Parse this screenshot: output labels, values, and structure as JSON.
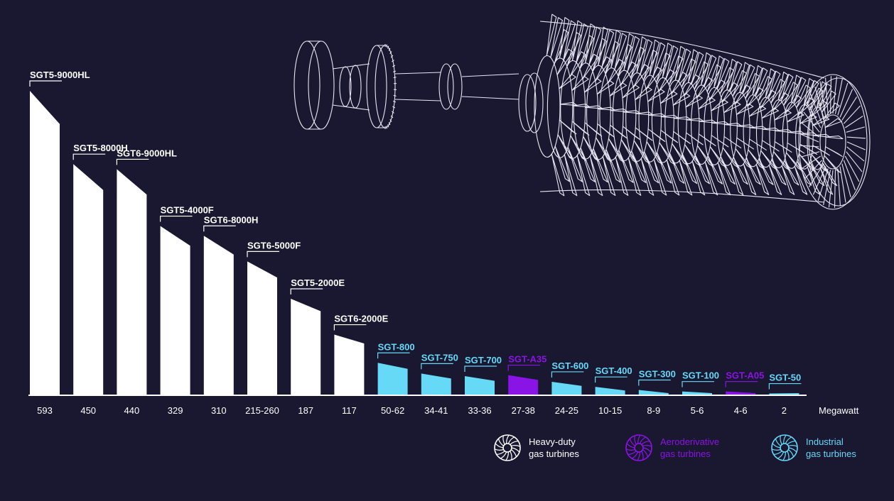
{
  "colors": {
    "background": "#1a1730",
    "heavy": "#ffffff",
    "aero": "#8a14e6",
    "industrial": "#66d9f7"
  },
  "chart_data": {
    "type": "bar",
    "unit_label": "Megawatt",
    "bars": [
      {
        "model": "SGT5-9000HL",
        "value_label": "593",
        "value": 593,
        "category": "heavy"
      },
      {
        "model": "SGT5-8000H",
        "value_label": "450",
        "value": 450,
        "category": "heavy"
      },
      {
        "model": "SGT6-9000HL",
        "value_label": "440",
        "value": 440,
        "category": "heavy"
      },
      {
        "model": "SGT5-4000F",
        "value_label": "329",
        "value": 329,
        "category": "heavy"
      },
      {
        "model": "SGT6-8000H",
        "value_label": "310",
        "value": 310,
        "category": "heavy"
      },
      {
        "model": "SGT6-5000F",
        "value_label": "215-260",
        "value": 260,
        "category": "heavy"
      },
      {
        "model": "SGT5-2000E",
        "value_label": "187",
        "value": 187,
        "category": "heavy"
      },
      {
        "model": "SGT6-2000E",
        "value_label": "117",
        "value": 117,
        "category": "heavy"
      },
      {
        "model": "SGT-800",
        "value_label": "50-62",
        "value": 62,
        "category": "industrial"
      },
      {
        "model": "SGT-750",
        "value_label": "34-41",
        "value": 41,
        "category": "industrial"
      },
      {
        "model": "SGT-700",
        "value_label": "33-36",
        "value": 36,
        "category": "industrial"
      },
      {
        "model": "SGT-A35",
        "value_label": "27-38",
        "value": 38,
        "category": "aero"
      },
      {
        "model": "SGT-600",
        "value_label": "24-25",
        "value": 25,
        "category": "industrial"
      },
      {
        "model": "SGT-400",
        "value_label": "10-15",
        "value": 15,
        "category": "industrial"
      },
      {
        "model": "SGT-300",
        "value_label": "8-9",
        "value": 9,
        "category": "industrial"
      },
      {
        "model": "SGT-100",
        "value_label": "5-6",
        "value": 6,
        "category": "industrial"
      },
      {
        "model": "SGT-A05",
        "value_label": "4-6",
        "value": 6,
        "category": "aero"
      },
      {
        "model": "SGT-50",
        "value_label": "2",
        "value": 2,
        "category": "industrial"
      }
    ],
    "legend": [
      {
        "key": "heavy",
        "line1": "Heavy-duty",
        "line2": "gas turbines",
        "icon": "turbine-icon"
      },
      {
        "key": "aero",
        "line1": "Aeroderivative",
        "line2": "gas turbines",
        "icon": "turbine-icon"
      },
      {
        "key": "industrial",
        "line1": "Industrial",
        "line2": "gas turbines",
        "icon": "turbine-icon"
      }
    ],
    "legend_placement": "bottom-right",
    "grid": false
  },
  "illustration": {
    "icon": "gas-turbine-illustration-icon"
  }
}
